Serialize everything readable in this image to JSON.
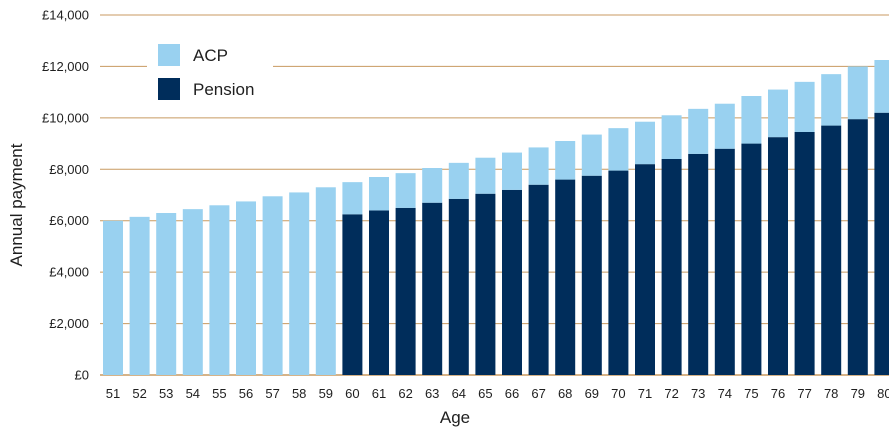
{
  "chart_data": {
    "type": "bar",
    "stacked": true,
    "title": "",
    "xlabel": "Age",
    "ylabel": "Annual payment",
    "ylim": [
      0,
      14000
    ],
    "y_ticks": [
      "£0",
      "£2,000",
      "£4,000",
      "£6,000",
      "£8,000",
      "£10,000",
      "£12,000",
      "£14,000"
    ],
    "y_tick_values": [
      0,
      2000,
      4000,
      6000,
      8000,
      10000,
      12000,
      14000
    ],
    "grid": true,
    "legend_position": "top-left",
    "categories": [
      "51",
      "52",
      "53",
      "54",
      "55",
      "56",
      "57",
      "58",
      "59",
      "60",
      "61",
      "62",
      "63",
      "64",
      "65",
      "66",
      "67",
      "68",
      "69",
      "70",
      "71",
      "72",
      "73",
      "74",
      "75",
      "76",
      "77",
      "78",
      "79",
      "80"
    ],
    "series": [
      {
        "name": "Pension",
        "color": "#002d5b",
        "values": [
          0,
          0,
          0,
          0,
          0,
          0,
          0,
          0,
          0,
          6250,
          6400,
          6500,
          6700,
          6850,
          7050,
          7200,
          7400,
          7600,
          7750,
          7950,
          8200,
          8400,
          8600,
          8800,
          9000,
          9250,
          9450,
          9700,
          9950,
          10200
        ]
      },
      {
        "name": "ACP",
        "color": "#99d1f0",
        "values": [
          6000,
          6150,
          6300,
          6450,
          6600,
          6750,
          6950,
          7100,
          7300,
          1250,
          1300,
          1350,
          1350,
          1400,
          1400,
          1450,
          1450,
          1500,
          1600,
          1650,
          1650,
          1700,
          1750,
          1750,
          1850,
          1850,
          1950,
          2000,
          2050,
          2050
        ]
      }
    ],
    "legend": [
      {
        "label": "ACP",
        "color": "#99d1f0"
      },
      {
        "label": "Pension",
        "color": "#002d5b"
      }
    ],
    "grid_color": "#c89a61",
    "axis_color": "#c89a61"
  }
}
